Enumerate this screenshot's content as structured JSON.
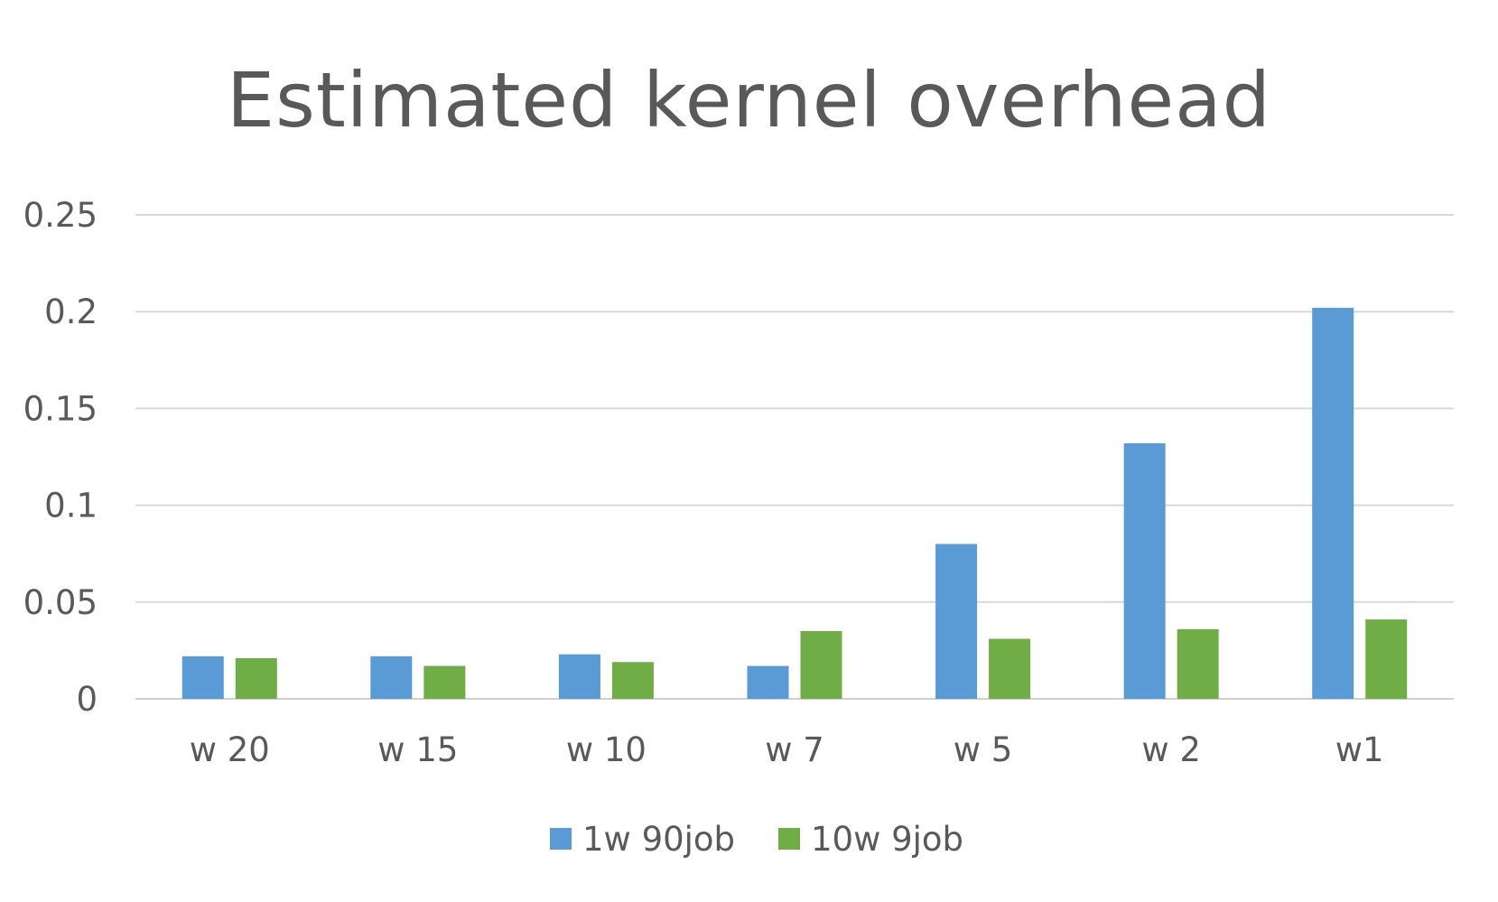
{
  "chart_data": {
    "type": "bar",
    "title": "Estimated kernel overhead",
    "xlabel": "",
    "ylabel": "",
    "categories": [
      "w 20",
      "w 15",
      "w 10",
      "w 7",
      "w 5",
      "w 2",
      "w1"
    ],
    "series": [
      {
        "name": "1w 90job",
        "color": "#5b9bd5",
        "values": [
          0.022,
          0.022,
          0.023,
          0.017,
          0.08,
          0.132,
          0.202
        ]
      },
      {
        "name": "10w 9job",
        "color": "#70ad47",
        "values": [
          0.021,
          0.017,
          0.019,
          0.035,
          0.031,
          0.036,
          0.041
        ]
      }
    ],
    "ylim": [
      0,
      0.25
    ],
    "yticks": [
      "0",
      "0.05",
      "0.1",
      "0.15",
      "0.2",
      "0.25"
    ],
    "grid": true,
    "legend_position": "bottom"
  }
}
